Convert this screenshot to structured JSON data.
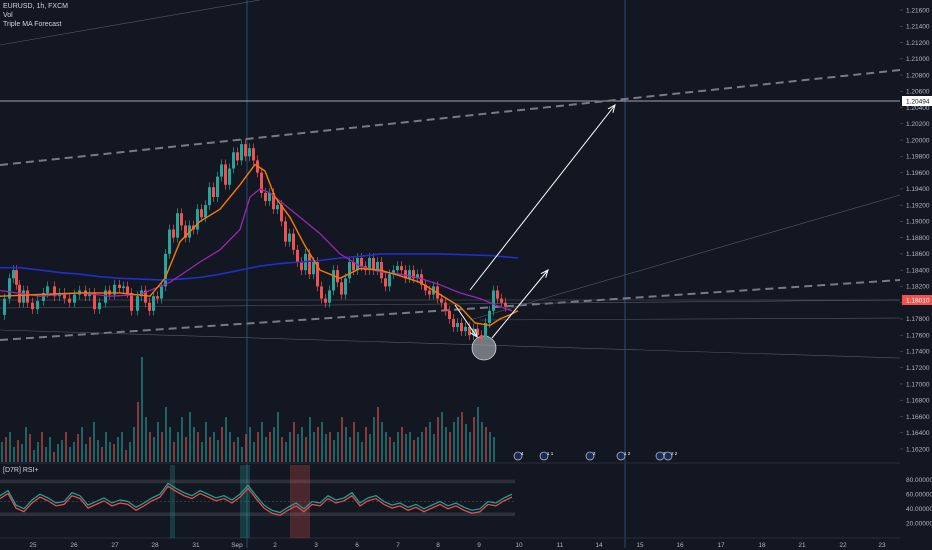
{
  "legend": {
    "symbol": "EURUSD, 1h, FXCM",
    "vol": "Vol",
    "indicator": "Triple MA Forecast"
  },
  "rsi_title": "[D7R] RSI+",
  "colors": {
    "background": "#131722",
    "up": "#26a69a",
    "down": "#ef5350",
    "ma_fast": "#f57c00",
    "ma_mid": "#9c27b0",
    "ma_slow": "#2130c8"
  },
  "chart_data": {
    "type": "candlestick",
    "price_axis": {
      "ticks": [
        "1.21600",
        "1.21400",
        "1.21200",
        "1.21000",
        "1.20800",
        "1.20600",
        "1.20400",
        "1.20200",
        "1.20000",
        "1.19800",
        "1.19600",
        "1.19400",
        "1.19200",
        "1.19000",
        "1.18800",
        "1.18600",
        "1.18400",
        "1.18200",
        "1.18000",
        "1.17800",
        "1.17600",
        "1.17400",
        "1.17200",
        "1.17000",
        "1.16800",
        "1.16600",
        "1.16400",
        "1.16200"
      ],
      "range": [
        1.16,
        1.2178
      ],
      "labels": {
        "target": "1.20494",
        "current": "1.18010"
      }
    },
    "rsi_axis": {
      "ticks": [
        "80.000000",
        "60.000000",
        "40.000000",
        "20.000000"
      ],
      "range": [
        0,
        100
      ]
    },
    "time_axis": {
      "ticks": [
        "25",
        "26",
        "27",
        "28",
        "31",
        "Sep",
        "2",
        "3",
        "6",
        "7",
        "8",
        "9",
        "10",
        "11",
        "14",
        "15",
        "16",
        "17",
        "18",
        "21",
        "22",
        "23"
      ]
    },
    "price_path_x": [
      0,
      5,
      10,
      14,
      17,
      20,
      24,
      28,
      33,
      38,
      44,
      48,
      55,
      60,
      65,
      70,
      75,
      80,
      86,
      90,
      95,
      100,
      106,
      110,
      115,
      120,
      124,
      128,
      132,
      138,
      142,
      146,
      150,
      154,
      158,
      162,
      166,
      170,
      174,
      178,
      182,
      186,
      190,
      194,
      198,
      202,
      206,
      210,
      214,
      218,
      222,
      226,
      230,
      234,
      238,
      242,
      246,
      250,
      254,
      258,
      262,
      266,
      270,
      274,
      278,
      282,
      286,
      290,
      294,
      298,
      302,
      306,
      310,
      314,
      318,
      322,
      326,
      330,
      334,
      338,
      342,
      346,
      350,
      354,
      358,
      362,
      366,
      370,
      374,
      378,
      382,
      386,
      390,
      394,
      398,
      402,
      406,
      410,
      414,
      418,
      422,
      426,
      430,
      434,
      438,
      442,
      446,
      450,
      454,
      458,
      462,
      466,
      470,
      474,
      478,
      482,
      486,
      490,
      494,
      498,
      502,
      506,
      510,
      514
    ],
    "price_path": [
      1.1785,
      1.1805,
      1.183,
      1.184,
      1.1822,
      1.18,
      1.1815,
      1.18,
      1.1792,
      1.1802,
      1.1812,
      1.182,
      1.1808,
      1.1812,
      1.1805,
      1.18,
      1.181,
      1.1815,
      1.1808,
      1.1812,
      1.1792,
      1.18,
      1.1815,
      1.181,
      1.1822,
      1.1818,
      1.182,
      1.1812,
      1.179,
      1.1808,
      1.1815,
      1.18,
      1.179,
      1.1808,
      1.1805,
      1.182,
      1.186,
      1.189,
      1.188,
      1.191,
      1.1895,
      1.188,
      1.1895,
      1.189,
      1.1915,
      1.1905,
      1.192,
      1.1942,
      1.193,
      1.1955,
      1.197,
      1.1945,
      1.1965,
      1.1985,
      1.1975,
      1.1995,
      1.198,
      1.199,
      1.1975,
      1.196,
      1.1935,
      1.1925,
      1.1935,
      1.1915,
      1.192,
      1.19,
      1.1875,
      1.1885,
      1.1865,
      1.185,
      1.184,
      1.186,
      1.1835,
      1.185,
      1.182,
      1.1805,
      1.18,
      1.1815,
      1.184,
      1.1825,
      1.181,
      1.183,
      1.185,
      1.184,
      1.1855,
      1.1845,
      1.184,
      1.1855,
      1.184,
      1.185,
      1.183,
      1.182,
      1.1835,
      1.184,
      1.1845,
      1.184,
      1.183,
      1.184,
      1.183,
      1.1835,
      1.1822,
      1.1815,
      1.181,
      1.182,
      1.1805,
      1.18,
      1.179,
      1.178,
      1.177,
      1.1775,
      1.1765,
      1.177,
      1.176,
      1.1768,
      1.176,
      1.1755,
      1.1775,
      1.179,
      1.1815,
      1.1805,
      1.18,
      1.1795
    ],
    "ma_slow": [
      1.1843,
      1.1843,
      1.184,
      1.1837,
      1.1835,
      1.1832,
      1.183,
      1.1829,
      1.1828,
      1.1829,
      1.1831,
      1.1835,
      1.184,
      1.1845,
      1.1848,
      1.185,
      1.1852,
      1.1855,
      1.1857,
      1.186,
      1.186,
      1.1858,
      1.1855
    ],
    "ma_slow_x": [
      0,
      20,
      40,
      60,
      80,
      100,
      120,
      140,
      160,
      180,
      200,
      220,
      240,
      260,
      280,
      300,
      320,
      340,
      360,
      380,
      440,
      490,
      518
    ],
    "ma_mid_x": [
      0,
      40,
      80,
      110,
      140,
      170,
      200,
      220,
      240,
      250,
      260,
      270,
      285,
      300,
      320,
      340,
      360,
      380,
      400,
      420,
      440,
      460,
      480,
      500,
      512
    ],
    "ma_mid": [
      1.1815,
      1.1808,
      1.1812,
      1.1808,
      1.181,
      1.1825,
      1.185,
      1.1865,
      1.189,
      1.193,
      1.194,
      1.1935,
      1.192,
      1.1905,
      1.1885,
      1.186,
      1.1845,
      1.1838,
      1.1835,
      1.183,
      1.1822,
      1.1812,
      1.1805,
      1.1795,
      1.179
    ],
    "ma_fast_x": [
      0,
      40,
      80,
      120,
      150,
      165,
      180,
      200,
      220,
      240,
      255,
      265,
      275,
      290,
      305,
      320,
      340,
      360,
      380,
      400,
      420,
      440,
      460,
      475,
      490,
      500,
      510,
      518
    ],
    "ma_fast": [
      1.1808,
      1.181,
      1.1812,
      1.1812,
      1.1808,
      1.183,
      1.1875,
      1.19,
      1.1915,
      1.1945,
      1.197,
      1.1962,
      1.193,
      1.1905,
      1.187,
      1.184,
      1.183,
      1.1842,
      1.184,
      1.1833,
      1.1825,
      1.181,
      1.1795,
      1.1775,
      1.1772,
      1.178,
      1.1785,
      1.179
    ],
    "volume_x": [
      0,
      4,
      8,
      12,
      16,
      20,
      24,
      28,
      32,
      36,
      40,
      44,
      48,
      52,
      56,
      60,
      64,
      68,
      72,
      76,
      80,
      84,
      88,
      92,
      96,
      100,
      104,
      108,
      112,
      116,
      120,
      124,
      128,
      132,
      136,
      140,
      144,
      148,
      152,
      156,
      160,
      164,
      168,
      172,
      176,
      180,
      184,
      188,
      192,
      196,
      200,
      204,
      208,
      212,
      216,
      220,
      224,
      228,
      232,
      236,
      240,
      244,
      248,
      252,
      256,
      260,
      264,
      268,
      272,
      276,
      280,
      284,
      288,
      292,
      296,
      300,
      304,
      308,
      312,
      316,
      320,
      324,
      328,
      332,
      336,
      340,
      344,
      348,
      352,
      356,
      360,
      364,
      368,
      372,
      376,
      380,
      384,
      388,
      392,
      396,
      400,
      404,
      408,
      412,
      416,
      420,
      424,
      428,
      432,
      436,
      440,
      444,
      448,
      452,
      456,
      460,
      464,
      468,
      472,
      476,
      480,
      484,
      488,
      492,
      496,
      500,
      504,
      508
    ],
    "volume": [
      20,
      25,
      30,
      15,
      22,
      18,
      35,
      28,
      12,
      20,
      30,
      15,
      25,
      10,
      18,
      22,
      30,
      15,
      20,
      28,
      35,
      18,
      25,
      40,
      22,
      15,
      30,
      20,
      18,
      25,
      30,
      12,
      20,
      35,
      60,
      105,
      45,
      30,
      25,
      40,
      30,
      55,
      35,
      20,
      30,
      45,
      25,
      50,
      35,
      30,
      20,
      40,
      25,
      30,
      22,
      35,
      45,
      30,
      20,
      25,
      15,
      28,
      35,
      20,
      30,
      40,
      25,
      30,
      35,
      50,
      25,
      20,
      30,
      40,
      28,
      35,
      25,
      45,
      30,
      35,
      40,
      28,
      30,
      22,
      30,
      45,
      35,
      25,
      40,
      30,
      20,
      35,
      28,
      45,
      55,
      40,
      30,
      25,
      20,
      30,
      35,
      28,
      30,
      22,
      25,
      30,
      35,
      40,
      28,
      45,
      50,
      35,
      30,
      40,
      45,
      50,
      38,
      30,
      45,
      55,
      40,
      35,
      30,
      25
    ],
    "rsi_x": [
      0,
      8,
      16,
      24,
      32,
      40,
      48,
      56,
      64,
      72,
      80,
      88,
      96,
      104,
      112,
      120,
      128,
      136,
      144,
      152,
      160,
      168,
      176,
      184,
      192,
      200,
      208,
      216,
      224,
      232,
      240,
      248,
      256,
      264,
      272,
      280,
      288,
      296,
      304,
      312,
      320,
      328,
      336,
      344,
      352,
      360,
      368,
      376,
      384,
      392,
      400,
      408,
      416,
      424,
      432,
      440,
      448,
      456,
      464,
      472,
      480,
      488,
      496,
      504,
      512
    ],
    "rsi": [
      58,
      65,
      45,
      40,
      52,
      60,
      55,
      48,
      50,
      62,
      58,
      45,
      50,
      55,
      48,
      52,
      50,
      42,
      48,
      55,
      60,
      75,
      68,
      62,
      58,
      65,
      60,
      55,
      58,
      52,
      60,
      72,
      58,
      45,
      38,
      35,
      42,
      48,
      40,
      50,
      48,
      58,
      52,
      55,
      62,
      48,
      55,
      58,
      50,
      45,
      48,
      42,
      46,
      40,
      45,
      50,
      44,
      48,
      42,
      38,
      40,
      50,
      48,
      55,
      60
    ]
  },
  "annotations": {
    "event_badges": [
      "4",
      "1 1",
      "2",
      "1 2",
      "2",
      "2 2"
    ]
  }
}
